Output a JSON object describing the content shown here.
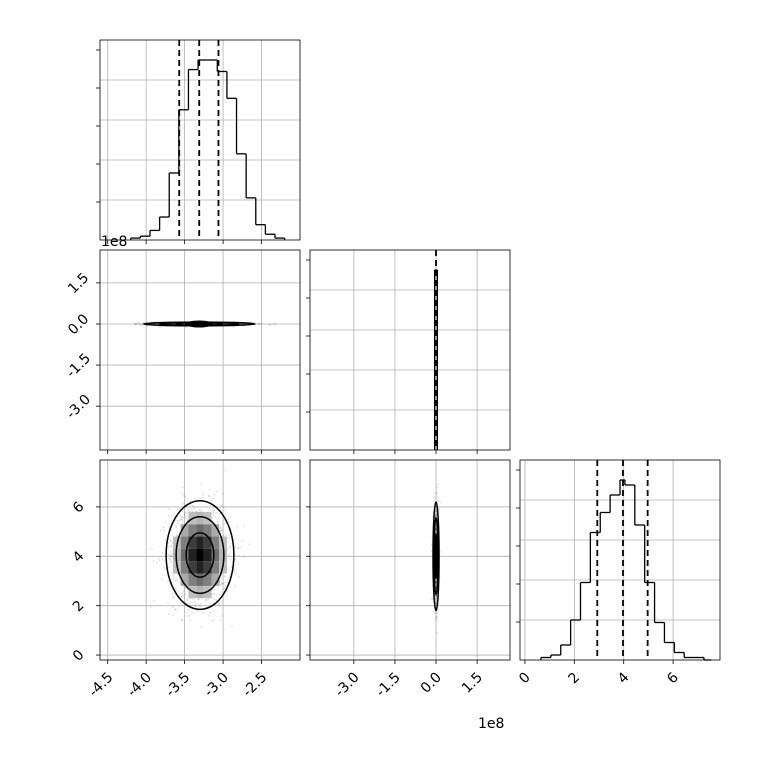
{
  "chart_data": {
    "type": "corner",
    "title": "",
    "parameters": [
      {
        "label": "",
        "range": [
          -4.6,
          -2.0
        ],
        "ticks": [
          "-4.5",
          "-4.0",
          "-3.5",
          "-3.0",
          "-2.5"
        ],
        "tick_values": [
          -4.5,
          -4.0,
          -3.5,
          -3.0,
          -2.5
        ]
      },
      {
        "label": "",
        "offset": "1e8",
        "range": [
          -4.6,
          2.7
        ],
        "ticks": [
          "-3.0",
          "-1.5",
          "0.0",
          "1.5"
        ],
        "tick_values": [
          -3.0,
          -1.5,
          0.0,
          1.5
        ]
      },
      {
        "label": "",
        "range": [
          -0.2,
          7.9
        ],
        "ticks": [
          "0",
          "2",
          "4",
          "6"
        ],
        "tick_values": [
          0,
          2,
          4,
          6
        ]
      }
    ],
    "offset_labels": [
      "1e8",
      "1e8"
    ],
    "grid": true,
    "marginals": [
      {
        "param": 0,
        "quantile_lines": [
          -3.57,
          -3.31,
          -3.06
        ],
        "bin_edges": [
          -4.2,
          -4.075,
          -3.95,
          -3.825,
          -3.7,
          -3.575,
          -3.45,
          -3.325,
          -3.2,
          -3.075,
          -2.95,
          -2.825,
          -2.7,
          -2.575,
          -2.45,
          -2.325,
          -2.2
        ],
        "counts": [
          1,
          2,
          5,
          12,
          35,
          68,
          89,
          94,
          94,
          88,
          74,
          45,
          22,
          8,
          3,
          1
        ]
      },
      {
        "param": 1,
        "quantile_lines": [
          0.0
        ],
        "bin_edges": [
          -0.05,
          0.05
        ],
        "counts": [
          95
        ]
      },
      {
        "param": 2,
        "quantile_lines": [
          2.93,
          3.97,
          4.97
        ],
        "bin_edges": [
          0.65,
          1.05,
          1.45,
          1.85,
          2.25,
          2.65,
          3.05,
          3.45,
          3.85,
          4.05,
          4.45,
          4.85,
          5.25,
          5.65,
          6.05,
          6.45,
          6.85,
          7.25,
          7.55
        ],
        "counts": [
          1,
          2,
          6,
          16,
          31,
          51,
          59,
          66,
          72,
          70,
          54,
          31,
          15,
          7,
          3,
          1,
          1,
          0
        ]
      }
    ],
    "joint": [
      {
        "x_param": 0,
        "y_param": 1,
        "center": [
          -3.31,
          0.0
        ],
        "spread": [
          0.33,
          0.03
        ]
      },
      {
        "x_param": 0,
        "y_param": 2,
        "center": [
          -3.3,
          4.05
        ],
        "spread": [
          0.2,
          1.0
        ]
      },
      {
        "x_param": 1,
        "y_param": 2,
        "center": [
          0.0,
          4.0
        ],
        "spread": [
          0.05,
          1.0
        ]
      }
    ]
  }
}
